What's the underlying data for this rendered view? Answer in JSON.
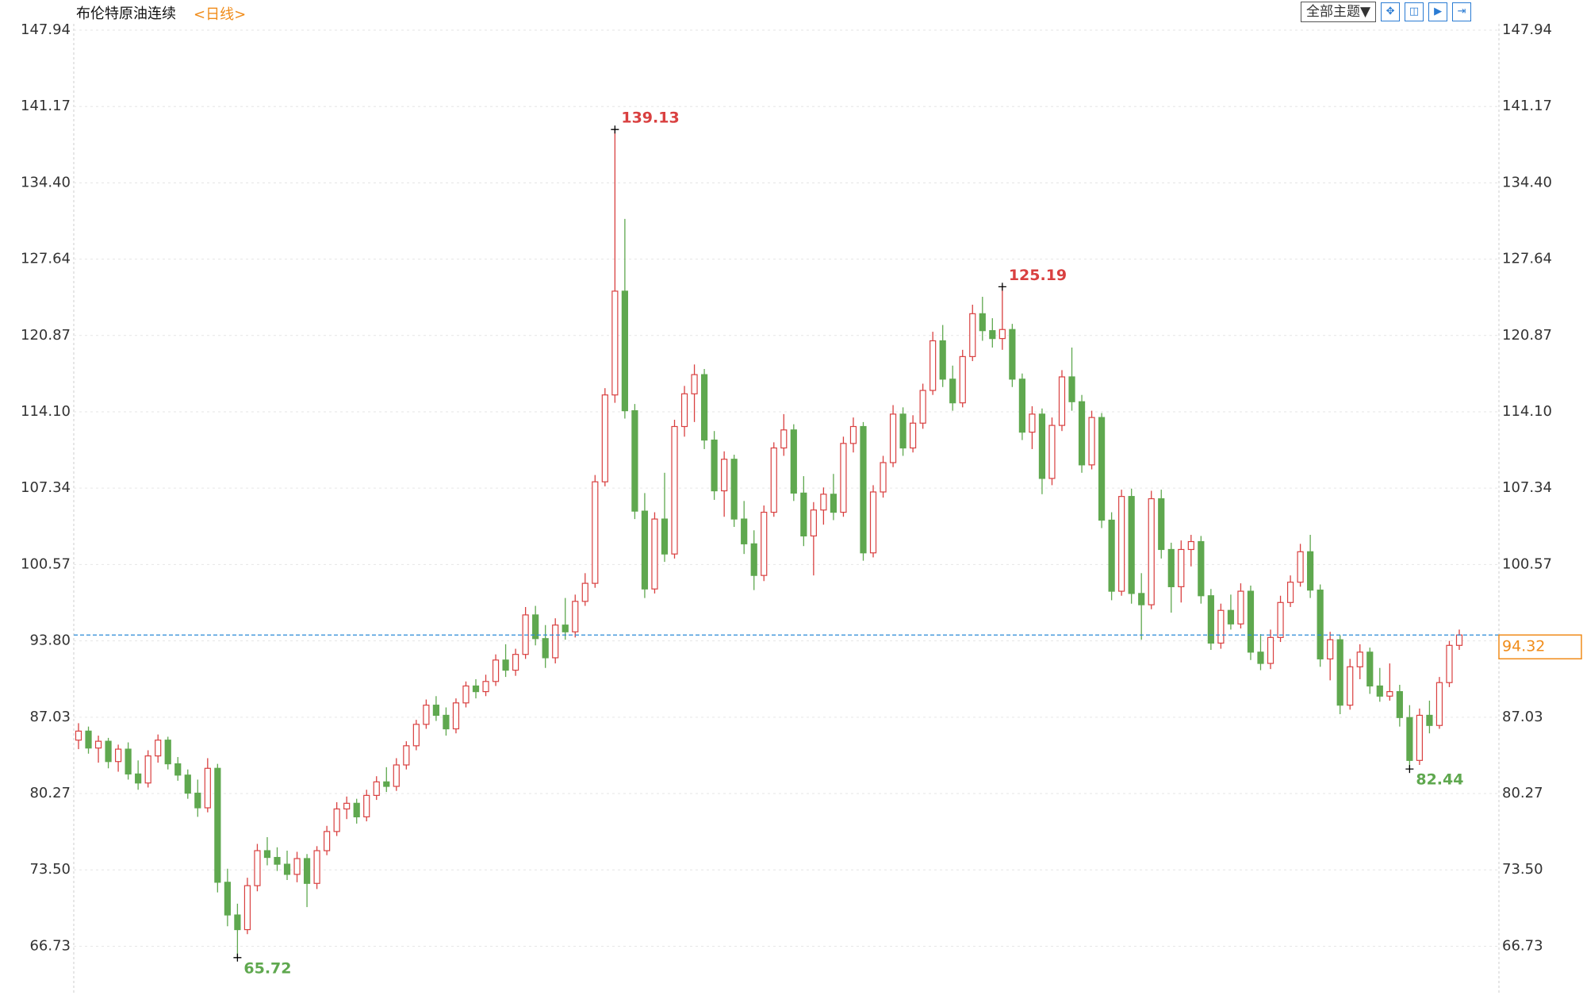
{
  "chart_data": {
    "type": "candlestick",
    "title": "布伦特原油连续",
    "subtitle": "<日线>",
    "up_color": "#d94040",
    "down_color": "#5fa84f",
    "price_line_color": "#2a8ad6",
    "last_label_color": "#f08c1a",
    "ylim": [
      62.4,
      148.5
    ],
    "yticks": [
      {
        "value": 66.73,
        "label": "66.73"
      },
      {
        "value": 73.5,
        "label": "73.50"
      },
      {
        "value": 80.27,
        "label": "80.27"
      },
      {
        "value": 87.03,
        "label": "87.03"
      },
      {
        "value": 93.8,
        "label": "93.80"
      },
      {
        "value": 100.57,
        "label": "100.57"
      },
      {
        "value": 107.34,
        "label": "107.34"
      },
      {
        "value": 114.1,
        "label": "114.10"
      },
      {
        "value": 120.87,
        "label": "120.87"
      },
      {
        "value": 127.64,
        "label": "127.64"
      },
      {
        "value": 134.4,
        "label": "134.40"
      },
      {
        "value": 141.17,
        "label": "141.17"
      },
      {
        "value": 147.94,
        "label": "147.94"
      }
    ],
    "grid": true,
    "ohlc": [
      [
        85,
        86.5,
        84.2,
        85.8
      ],
      [
        85.8,
        86.2,
        83.8,
        84.3
      ],
      [
        84.3,
        85.4,
        83,
        84.9
      ],
      [
        84.9,
        85.2,
        82.5,
        83.1
      ],
      [
        83.1,
        84.6,
        82.2,
        84.2
      ],
      [
        84.2,
        84.8,
        81.5,
        82
      ],
      [
        82,
        83.2,
        80.6,
        81.2
      ],
      [
        81.2,
        84.1,
        80.8,
        83.6
      ],
      [
        83.6,
        85.5,
        83,
        85
      ],
      [
        85,
        85.3,
        82.4,
        82.9
      ],
      [
        82.9,
        83.5,
        81.4,
        81.9
      ],
      [
        81.9,
        82.4,
        79.8,
        80.3
      ],
      [
        80.3,
        81.5,
        78.2,
        79
      ],
      [
        79,
        83.4,
        78.6,
        82.5
      ],
      [
        82.5,
        82.9,
        71.5,
        72.4
      ],
      [
        72.4,
        73.6,
        68.5,
        69.5
      ],
      [
        69.5,
        70.5,
        65.72,
        68.2
      ],
      [
        68.2,
        72.8,
        67.8,
        72.1
      ],
      [
        72.1,
        75.8,
        71.6,
        75.2
      ],
      [
        75.2,
        76.4,
        73.9,
        74.6
      ],
      [
        74.6,
        75.5,
        73.4,
        74
      ],
      [
        74,
        75.2,
        72.6,
        73.1
      ],
      [
        73.1,
        75.1,
        72.4,
        74.5
      ],
      [
        74.5,
        74.9,
        70.2,
        72.3
      ],
      [
        72.3,
        75.6,
        71.8,
        75.2
      ],
      [
        75.2,
        77.4,
        74.8,
        76.9
      ],
      [
        76.9,
        79.5,
        76.5,
        78.9
      ],
      [
        78.9,
        80,
        78,
        79.4
      ],
      [
        79.4,
        79.8,
        77.6,
        78.2
      ],
      [
        78.2,
        80.6,
        77.8,
        80.1
      ],
      [
        80.1,
        81.8,
        79.7,
        81.3
      ],
      [
        81.3,
        82.6,
        80.4,
        80.9
      ],
      [
        80.9,
        83.4,
        80.5,
        82.8
      ],
      [
        82.8,
        84.9,
        82.4,
        84.5
      ],
      [
        84.5,
        86.8,
        84.1,
        86.4
      ],
      [
        86.4,
        88.6,
        86,
        88.1
      ],
      [
        88.1,
        88.9,
        86.7,
        87.2
      ],
      [
        87.2,
        87.9,
        85.4,
        86
      ],
      [
        86,
        88.7,
        85.6,
        88.3
      ],
      [
        88.3,
        90.2,
        87.9,
        89.8
      ],
      [
        89.8,
        90.4,
        88.7,
        89.3
      ],
      [
        89.3,
        90.8,
        88.9,
        90.2
      ],
      [
        90.2,
        92.6,
        89.8,
        92.1
      ],
      [
        92.1,
        93.5,
        90.6,
        91.2
      ],
      [
        91.2,
        93.1,
        90.7,
        92.6
      ],
      [
        92.6,
        96.8,
        92.2,
        96.1
      ],
      [
        96.1,
        96.9,
        93.4,
        94
      ],
      [
        94,
        95.2,
        91.4,
        92.3
      ],
      [
        92.3,
        95.8,
        91.8,
        95.2
      ],
      [
        95.2,
        97.6,
        93.9,
        94.6
      ],
      [
        94.6,
        97.9,
        94.1,
        97.3
      ],
      [
        97.3,
        99.8,
        96.9,
        98.9
      ],
      [
        98.9,
        108.5,
        98.5,
        107.9
      ],
      [
        107.9,
        116.2,
        107.5,
        115.6
      ],
      [
        115.6,
        139.13,
        114.9,
        124.8
      ],
      [
        124.8,
        131.2,
        113.5,
        114.2
      ],
      [
        114.2,
        114.8,
        104.6,
        105.3
      ],
      [
        105.3,
        106.9,
        97.6,
        98.4
      ],
      [
        98.4,
        105.2,
        98,
        104.6
      ],
      [
        104.6,
        108.7,
        100.8,
        101.5
      ],
      [
        101.5,
        113.4,
        101.1,
        112.8
      ],
      [
        112.8,
        116.4,
        111.9,
        115.7
      ],
      [
        115.7,
        118.3,
        113.2,
        117.4
      ],
      [
        117.4,
        117.9,
        110.8,
        111.6
      ],
      [
        111.6,
        112.4,
        106.3,
        107.1
      ],
      [
        107.1,
        110.6,
        104.8,
        109.9
      ],
      [
        109.9,
        110.3,
        103.9,
        104.6
      ],
      [
        104.6,
        106.2,
        101.5,
        102.4
      ],
      [
        102.4,
        103.6,
        98.3,
        99.6
      ],
      [
        99.6,
        105.8,
        99.1,
        105.2
      ],
      [
        105.2,
        111.4,
        104.8,
        110.9
      ],
      [
        110.9,
        113.9,
        110.2,
        112.5
      ],
      [
        112.5,
        113,
        106.2,
        106.9
      ],
      [
        106.9,
        108.4,
        102.2,
        103.1
      ],
      [
        103.1,
        106.1,
        99.6,
        105.4
      ],
      [
        105.4,
        107.4,
        104.1,
        106.8
      ],
      [
        106.8,
        108.6,
        104.5,
        105.2
      ],
      [
        105.2,
        111.9,
        104.8,
        111.3
      ],
      [
        111.3,
        113.6,
        110.5,
        112.8
      ],
      [
        112.8,
        113.2,
        100.9,
        101.6
      ],
      [
        101.6,
        107.6,
        101.2,
        107
      ],
      [
        107,
        110.2,
        106.5,
        109.6
      ],
      [
        109.6,
        114.7,
        109.2,
        113.9
      ],
      [
        113.9,
        114.5,
        110.2,
        110.9
      ],
      [
        110.9,
        113.8,
        110.5,
        113.1
      ],
      [
        113.1,
        116.6,
        112.6,
        116
      ],
      [
        116,
        121.2,
        115.6,
        120.4
      ],
      [
        120.4,
        121.8,
        116.3,
        117
      ],
      [
        117,
        118.2,
        114.2,
        114.9
      ],
      [
        114.9,
        119.6,
        114.5,
        119
      ],
      [
        119,
        123.6,
        118.6,
        122.8
      ],
      [
        122.8,
        124.3,
        120.4,
        121.3
      ],
      [
        121.3,
        122.4,
        119.8,
        120.6
      ],
      [
        120.6,
        125.19,
        119.6,
        121.4
      ],
      [
        121.4,
        121.9,
        116.3,
        117
      ],
      [
        117,
        117.5,
        111.6,
        112.3
      ],
      [
        112.3,
        114.6,
        110.8,
        113.9
      ],
      [
        113.9,
        114.4,
        106.8,
        108.2
      ],
      [
        108.2,
        113.6,
        107.6,
        112.9
      ],
      [
        112.9,
        117.8,
        112.4,
        117.2
      ],
      [
        117.2,
        119.8,
        114.2,
        115
      ],
      [
        115,
        115.6,
        108.7,
        109.4
      ],
      [
        109.4,
        114.2,
        109,
        113.6
      ],
      [
        113.6,
        114,
        103.8,
        104.5
      ],
      [
        104.5,
        105.2,
        97.4,
        98.2
      ],
      [
        98.2,
        107.2,
        97.8,
        106.6
      ],
      [
        106.6,
        107.3,
        97.1,
        98
      ],
      [
        98,
        99.8,
        93.9,
        97
      ],
      [
        97,
        107.1,
        96.6,
        106.4
      ],
      [
        106.4,
        107.2,
        101.1,
        101.9
      ],
      [
        101.9,
        102.5,
        96.3,
        98.6
      ],
      [
        98.6,
        102.7,
        97.2,
        101.9
      ],
      [
        101.9,
        103.2,
        100.4,
        102.6
      ],
      [
        102.6,
        103.1,
        97.1,
        97.8
      ],
      [
        97.8,
        98.4,
        93,
        93.6
      ],
      [
        93.6,
        97.1,
        93.1,
        96.5
      ],
      [
        96.5,
        97.9,
        94.8,
        95.3
      ],
      [
        95.3,
        98.9,
        94.9,
        98.2
      ],
      [
        98.2,
        98.7,
        92.1,
        92.8
      ],
      [
        92.8,
        94.4,
        91.2,
        91.8
      ],
      [
        91.8,
        94.8,
        91.3,
        94.1
      ],
      [
        94.1,
        97.8,
        93.7,
        97.2
      ],
      [
        97.2,
        99.6,
        96.8,
        99
      ],
      [
        99,
        102.4,
        98.6,
        101.7
      ],
      [
        101.7,
        103.2,
        97.6,
        98.3
      ],
      [
        98.3,
        98.8,
        91.5,
        92.2
      ],
      [
        92.2,
        94.6,
        90.3,
        93.9
      ],
      [
        93.9,
        94.3,
        87.3,
        88.1
      ],
      [
        88.1,
        92.2,
        87.7,
        91.5
      ],
      [
        91.5,
        93.5,
        90.4,
        92.8
      ],
      [
        92.8,
        93.2,
        89.1,
        89.8
      ],
      [
        89.8,
        91.4,
        88.4,
        88.9
      ],
      [
        88.9,
        91.8,
        88.5,
        89.3
      ],
      [
        89.3,
        89.9,
        86.2,
        87
      ],
      [
        87,
        88.1,
        82.44,
        83.2
      ],
      [
        83.2,
        87.8,
        82.8,
        87.2
      ],
      [
        87.2,
        88.5,
        85.6,
        86.3
      ],
      [
        86.3,
        90.6,
        86,
        90.1
      ],
      [
        90.1,
        93.8,
        89.7,
        93.4
      ],
      [
        93.4,
        94.8,
        93,
        94.32
      ]
    ],
    "toolbar_button": "全部主题▼"
  }
}
